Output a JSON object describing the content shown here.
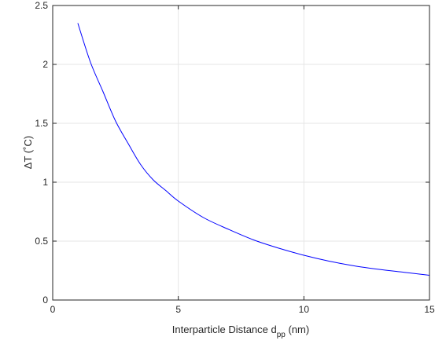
{
  "chart_data": {
    "type": "line",
    "title": "",
    "xlabel": "Interparticle Distance d",
    "xlabel_subscript": "pp",
    "xlabel_unit": " (nm)",
    "ylabel": "ΔT (˚C)",
    "xlim": [
      0,
      15
    ],
    "ylim": [
      0,
      2.5
    ],
    "xticks": [
      "0",
      "5",
      "10",
      "15"
    ],
    "yticks": [
      "0",
      "0.5",
      "1",
      "1.5",
      "2",
      "2.5"
    ],
    "grid": true,
    "line_color": "#0000ff",
    "series": [
      {
        "x": [
          1,
          1.5,
          2,
          2.5,
          3,
          3.5,
          4,
          4.5,
          5,
          6,
          7,
          8,
          9,
          10,
          11,
          12,
          13,
          14,
          15
        ],
        "y": [
          2.35,
          2.02,
          1.77,
          1.52,
          1.33,
          1.15,
          1.02,
          0.93,
          0.84,
          0.7,
          0.6,
          0.51,
          0.44,
          0.38,
          0.33,
          0.29,
          0.26,
          0.235,
          0.21
        ]
      }
    ]
  }
}
